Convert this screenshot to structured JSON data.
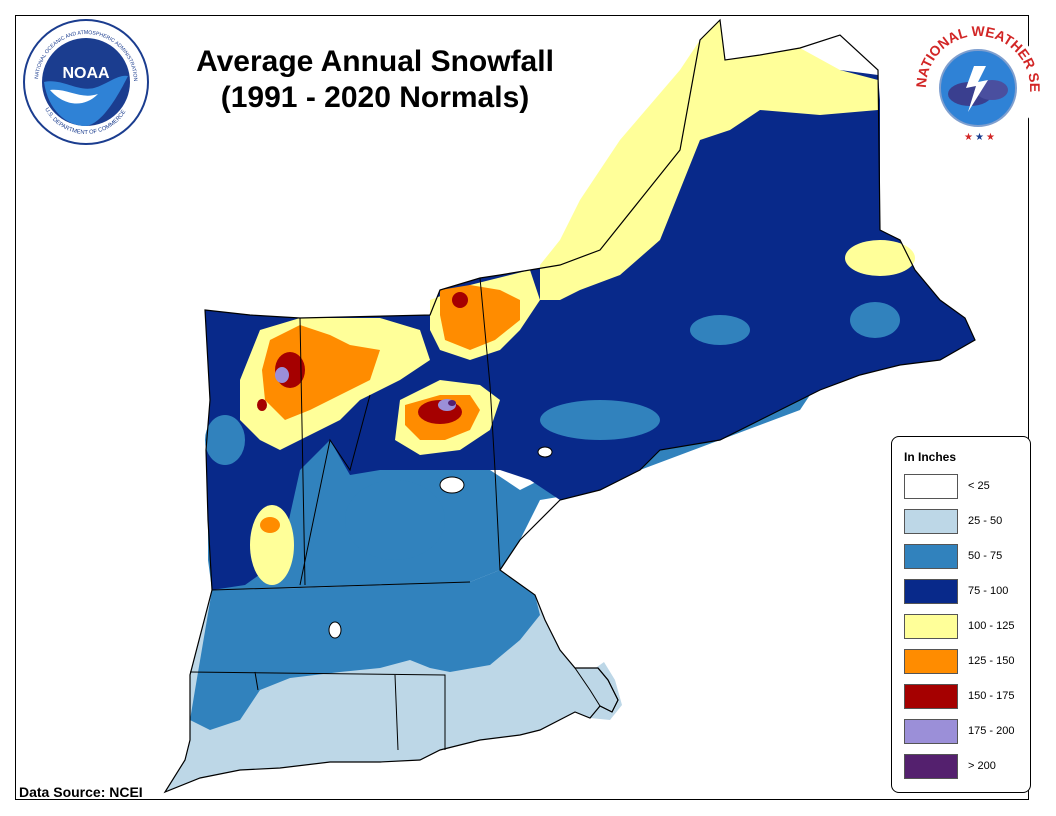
{
  "title": {
    "line1": "Average Annual Snowfall",
    "line2": "(1991 - 2020 Normals)"
  },
  "source": "Data Source: NCEI",
  "legend": {
    "title": "In Inches",
    "items": [
      {
        "label": "< 25",
        "color": "#ffffff"
      },
      {
        "label": "25 - 50",
        "color": "#bdd7e7"
      },
      {
        "label": "50 - 75",
        "color": "#3182bd"
      },
      {
        "label": "75 - 100",
        "color": "#08298a"
      },
      {
        "label": "100 - 125",
        "color": "#ffff99"
      },
      {
        "label": "125 - 150",
        "color": "#ff8c00"
      },
      {
        "label": "150 - 175",
        "color": "#a50000"
      },
      {
        "label": "175 - 200",
        "color": "#9b8fd8"
      },
      {
        "label": "> 200",
        "color": "#54206e"
      }
    ]
  },
  "logos": {
    "noaa": {
      "center_text": "NOAA",
      "ring_text": "NATIONAL OCEANIC AND ATMOSPHERIC ADMINISTRATION",
      "bottom_text": "U.S. DEPARTMENT OF COMMERCE"
    },
    "nws": {
      "ring_text": "NATIONAL WEATHER SERVICE"
    }
  }
}
